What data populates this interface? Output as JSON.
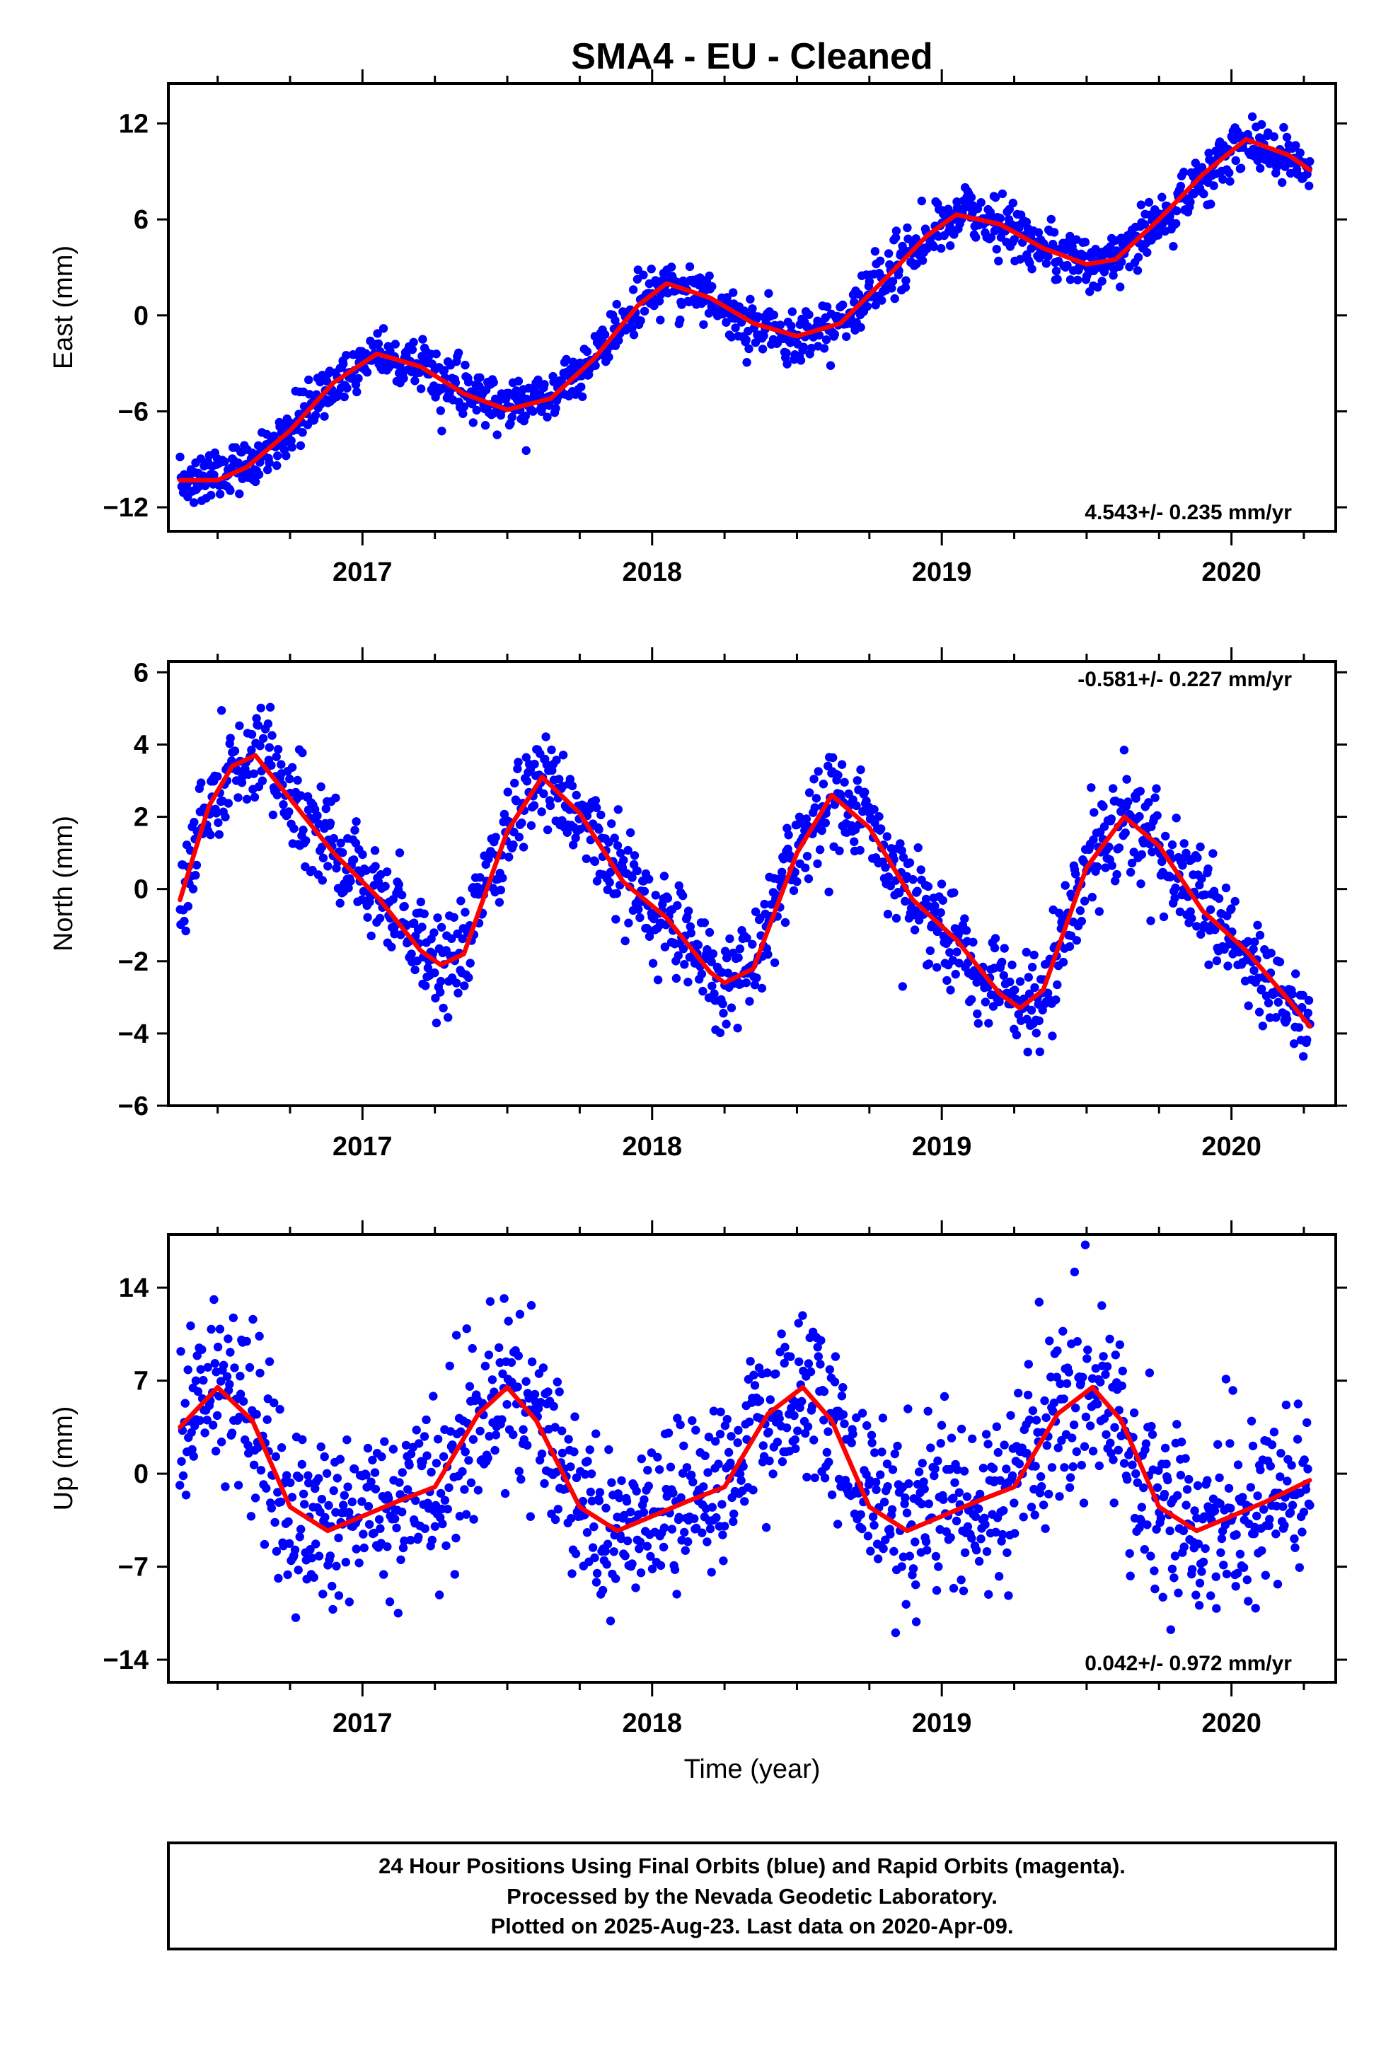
{
  "figure": {
    "title": "SMA4  - EU - Cleaned",
    "footer_lines": [
      "24 Hour Positions Using Final Orbits (blue) and Rapid Orbits (magenta).",
      "Processed by the Nevada Geodetic Laboratory.",
      "Plotted on 2025-Aug-23. Last data on 2020-Apr-09."
    ]
  },
  "colors": {
    "points": "#0000ff",
    "model": "#ff0000",
    "frame": "#000000"
  },
  "chart_data": [
    {
      "type": "scatter",
      "component": "east",
      "ylabel": "East (mm)",
      "xlabel": "",
      "xlim": [
        2016.33,
        2020.36
      ],
      "ylim": [
        -13.5,
        14.5
      ],
      "xticks": [
        2017,
        2018,
        2019,
        2020
      ],
      "yticks": [
        -12,
        -6,
        0,
        6,
        12
      ],
      "rate_label": "4.543+/- 0.235 mm/yr",
      "rate_position": "bottom-right",
      "series": [
        {
          "name": "Final Orbits",
          "color": "#0000ff",
          "style": "points",
          "data_start": 2016.37,
          "data_end": 2020.27,
          "scatter_sd": 0.8
        },
        {
          "name": "Model",
          "color": "#ff0000",
          "style": "line",
          "x": [
            2016.37,
            2016.5,
            2016.6,
            2016.75,
            2016.9,
            2017.05,
            2017.2,
            2017.35,
            2017.5,
            2017.65,
            2017.8,
            2017.95,
            2018.05,
            2018.2,
            2018.35,
            2018.5,
            2018.65,
            2018.8,
            2018.95,
            2019.05,
            2019.2,
            2019.35,
            2019.5,
            2019.6,
            2019.75,
            2019.9,
            2020.05,
            2020.2,
            2020.27
          ],
          "y": [
            -10.3,
            -10.3,
            -9.5,
            -7.2,
            -4.2,
            -2.4,
            -3.2,
            -4.9,
            -5.9,
            -5.2,
            -2.7,
            0.6,
            2.0,
            1.1,
            -0.5,
            -1.3,
            -0.5,
            2.2,
            5.0,
            6.3,
            5.7,
            4.2,
            3.2,
            3.5,
            6.0,
            8.8,
            11.0,
            10.0,
            9.1
          ]
        }
      ]
    },
    {
      "type": "scatter",
      "component": "north",
      "ylabel": "North (mm)",
      "xlabel": "",
      "xlim": [
        2016.33,
        2020.36
      ],
      "ylim": [
        -6,
        6.3
      ],
      "xticks": [
        2017,
        2018,
        2019,
        2020
      ],
      "yticks": [
        -6,
        -4,
        -2,
        0,
        2,
        4,
        6
      ],
      "rate_label": "-0.581+/- 0.227 mm/yr",
      "rate_position": "top-right",
      "series": [
        {
          "name": "Final Orbits",
          "color": "#0000ff",
          "style": "points",
          "data_start": 2016.37,
          "data_end": 2020.27,
          "scatter_sd": 0.7
        },
        {
          "name": "Model",
          "color": "#ff0000",
          "style": "line",
          "x": [
            2016.37,
            2016.47,
            2016.55,
            2016.63,
            2016.75,
            2016.9,
            2017.05,
            2017.2,
            2017.27,
            2017.35,
            2017.5,
            2017.62,
            2017.75,
            2017.9,
            2018.05,
            2018.2,
            2018.25,
            2018.35,
            2018.5,
            2018.62,
            2018.75,
            2018.9,
            2019.05,
            2019.2,
            2019.27,
            2019.35,
            2019.5,
            2019.63,
            2019.75,
            2019.9,
            2020.05,
            2020.2,
            2020.27
          ],
          "y": [
            -0.3,
            2.3,
            3.4,
            3.7,
            2.5,
            1.0,
            -0.2,
            -1.7,
            -2.1,
            -1.8,
            1.6,
            3.1,
            2.1,
            0.2,
            -0.8,
            -2.3,
            -2.6,
            -2.2,
            1.0,
            2.6,
            1.7,
            -0.3,
            -1.4,
            -2.9,
            -3.3,
            -2.8,
            0.6,
            2.0,
            1.2,
            -0.6,
            -1.7,
            -3.1,
            -3.8
          ]
        }
      ]
    },
    {
      "type": "scatter",
      "component": "up",
      "ylabel": "Up (mm)",
      "xlabel": "Time (year)",
      "xlim": [
        2016.33,
        2020.36
      ],
      "ylim": [
        -15.7,
        18.0
      ],
      "xticks": [
        2017,
        2018,
        2019,
        2020
      ],
      "yticks": [
        -14,
        -7,
        0,
        7,
        14
      ],
      "rate_label": "0.042+/- 0.972 mm/yr",
      "rate_position": "bottom-right",
      "series": [
        {
          "name": "Final Orbits",
          "color": "#0000ff",
          "style": "points",
          "data_start": 2016.37,
          "data_end": 2020.27,
          "scatter_sd": 3.3
        },
        {
          "name": "Model",
          "color": "#ff0000",
          "style": "line",
          "x": [
            2016.37,
            2016.5,
            2016.62,
            2016.75,
            2016.88,
            2017.0,
            2017.12,
            2017.25,
            2017.4,
            2017.5,
            2017.6,
            2017.75,
            2017.88,
            2018.0,
            2018.12,
            2018.25,
            2018.4,
            2018.52,
            2018.62,
            2018.75,
            2018.88,
            2019.0,
            2019.12,
            2019.25,
            2019.4,
            2019.52,
            2019.62,
            2019.75,
            2019.88,
            2020.0,
            2020.12,
            2020.27
          ],
          "y": [
            3.5,
            6.5,
            4.0,
            -2.5,
            -4.3,
            -3.2,
            -2.1,
            -1.0,
            4.5,
            6.5,
            4.0,
            -2.5,
            -4.3,
            -3.2,
            -2.1,
            -1.0,
            4.5,
            6.5,
            4.0,
            -2.5,
            -4.3,
            -3.2,
            -2.1,
            -1.0,
            4.5,
            6.5,
            4.0,
            -2.5,
            -4.3,
            -3.2,
            -2.1,
            -0.5
          ]
        }
      ]
    }
  ]
}
